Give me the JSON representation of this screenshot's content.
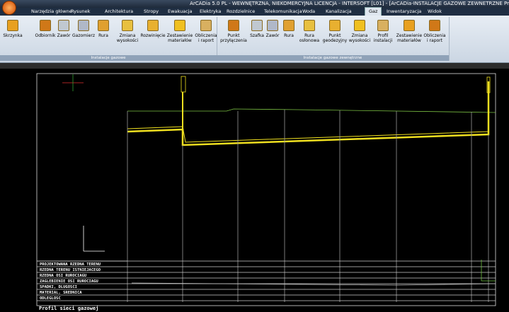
{
  "title_bar": {
    "title": "ArCADia 5.0 PL - WEWNĘTRZNA, NIEKOMERCYJNA LICENCJA - INTERSOFT [L01] - [ArCADia-INSTALACJE GAZOWE ZEWNETRZNE Pr"
  },
  "tabs": [
    {
      "label": "Narzędzia główne"
    },
    {
      "label": "Rysunek"
    },
    {
      "label": "Architektura"
    },
    {
      "label": "Stropy"
    },
    {
      "label": "Ewakuacja"
    },
    {
      "label": "Elektryka"
    },
    {
      "label": "Rozdzielnice"
    },
    {
      "label": "Telekomunikacja"
    },
    {
      "label": "Woda"
    },
    {
      "label": "Kanalizacja"
    },
    {
      "label": "Gaz",
      "active": true
    },
    {
      "label": "Inwentaryzacja"
    },
    {
      "label": "Widok"
    }
  ],
  "ribbon_groups": [
    {
      "label": "Instalacje gazowe",
      "buttons": [
        {
          "lines": [
            "Skrzynka"
          ]
        },
        {
          "lines": [
            "Odbiornik"
          ]
        },
        {
          "lines": [
            "Zawór"
          ]
        },
        {
          "lines": [
            "Gazomierz"
          ]
        },
        {
          "lines": [
            "Rura"
          ]
        },
        {
          "lines": [
            "Zmiana",
            "wysokości"
          ]
        },
        {
          "lines": [
            "Rozwinięcie"
          ]
        },
        {
          "lines": [
            "Zestawienie",
            "materiałów"
          ]
        },
        {
          "lines": [
            "Obliczenia",
            "i raport"
          ]
        }
      ]
    },
    {
      "label": "Instalacje gazowe zewnętrzne",
      "buttons": [
        {
          "lines": [
            "Punkt",
            "przyłączenia"
          ]
        },
        {
          "lines": [
            "Szafka"
          ]
        },
        {
          "lines": [
            "Zawór"
          ]
        },
        {
          "lines": [
            "Rura"
          ]
        },
        {
          "lines": [
            "Rura",
            "osłonowa"
          ]
        },
        {
          "lines": [
            "Punkt",
            "geodezyjny"
          ]
        },
        {
          "lines": [
            "Zmiana",
            "wysokości"
          ]
        },
        {
          "lines": [
            "Profil",
            "instalacji"
          ]
        },
        {
          "lines": [
            "Zestawienie",
            "materiałów"
          ]
        },
        {
          "lines": [
            "Obliczenia",
            "i raport"
          ]
        }
      ]
    }
  ],
  "drawing": {
    "table_rows": [
      "PROJEKTOWANA RZEDNA TERENU",
      "RZEDNA TERENU ISTNIEJACEGO",
      "RZEDNA OSI RUROCIAGU",
      "ZAGLEBIENIE OSI RUROCIAGU",
      "SPADKI, DLUGOSCI",
      "MATERIAL, SREDNICA",
      "ODLEGLOSC"
    ],
    "caption": "Profil sieci gazowej"
  }
}
